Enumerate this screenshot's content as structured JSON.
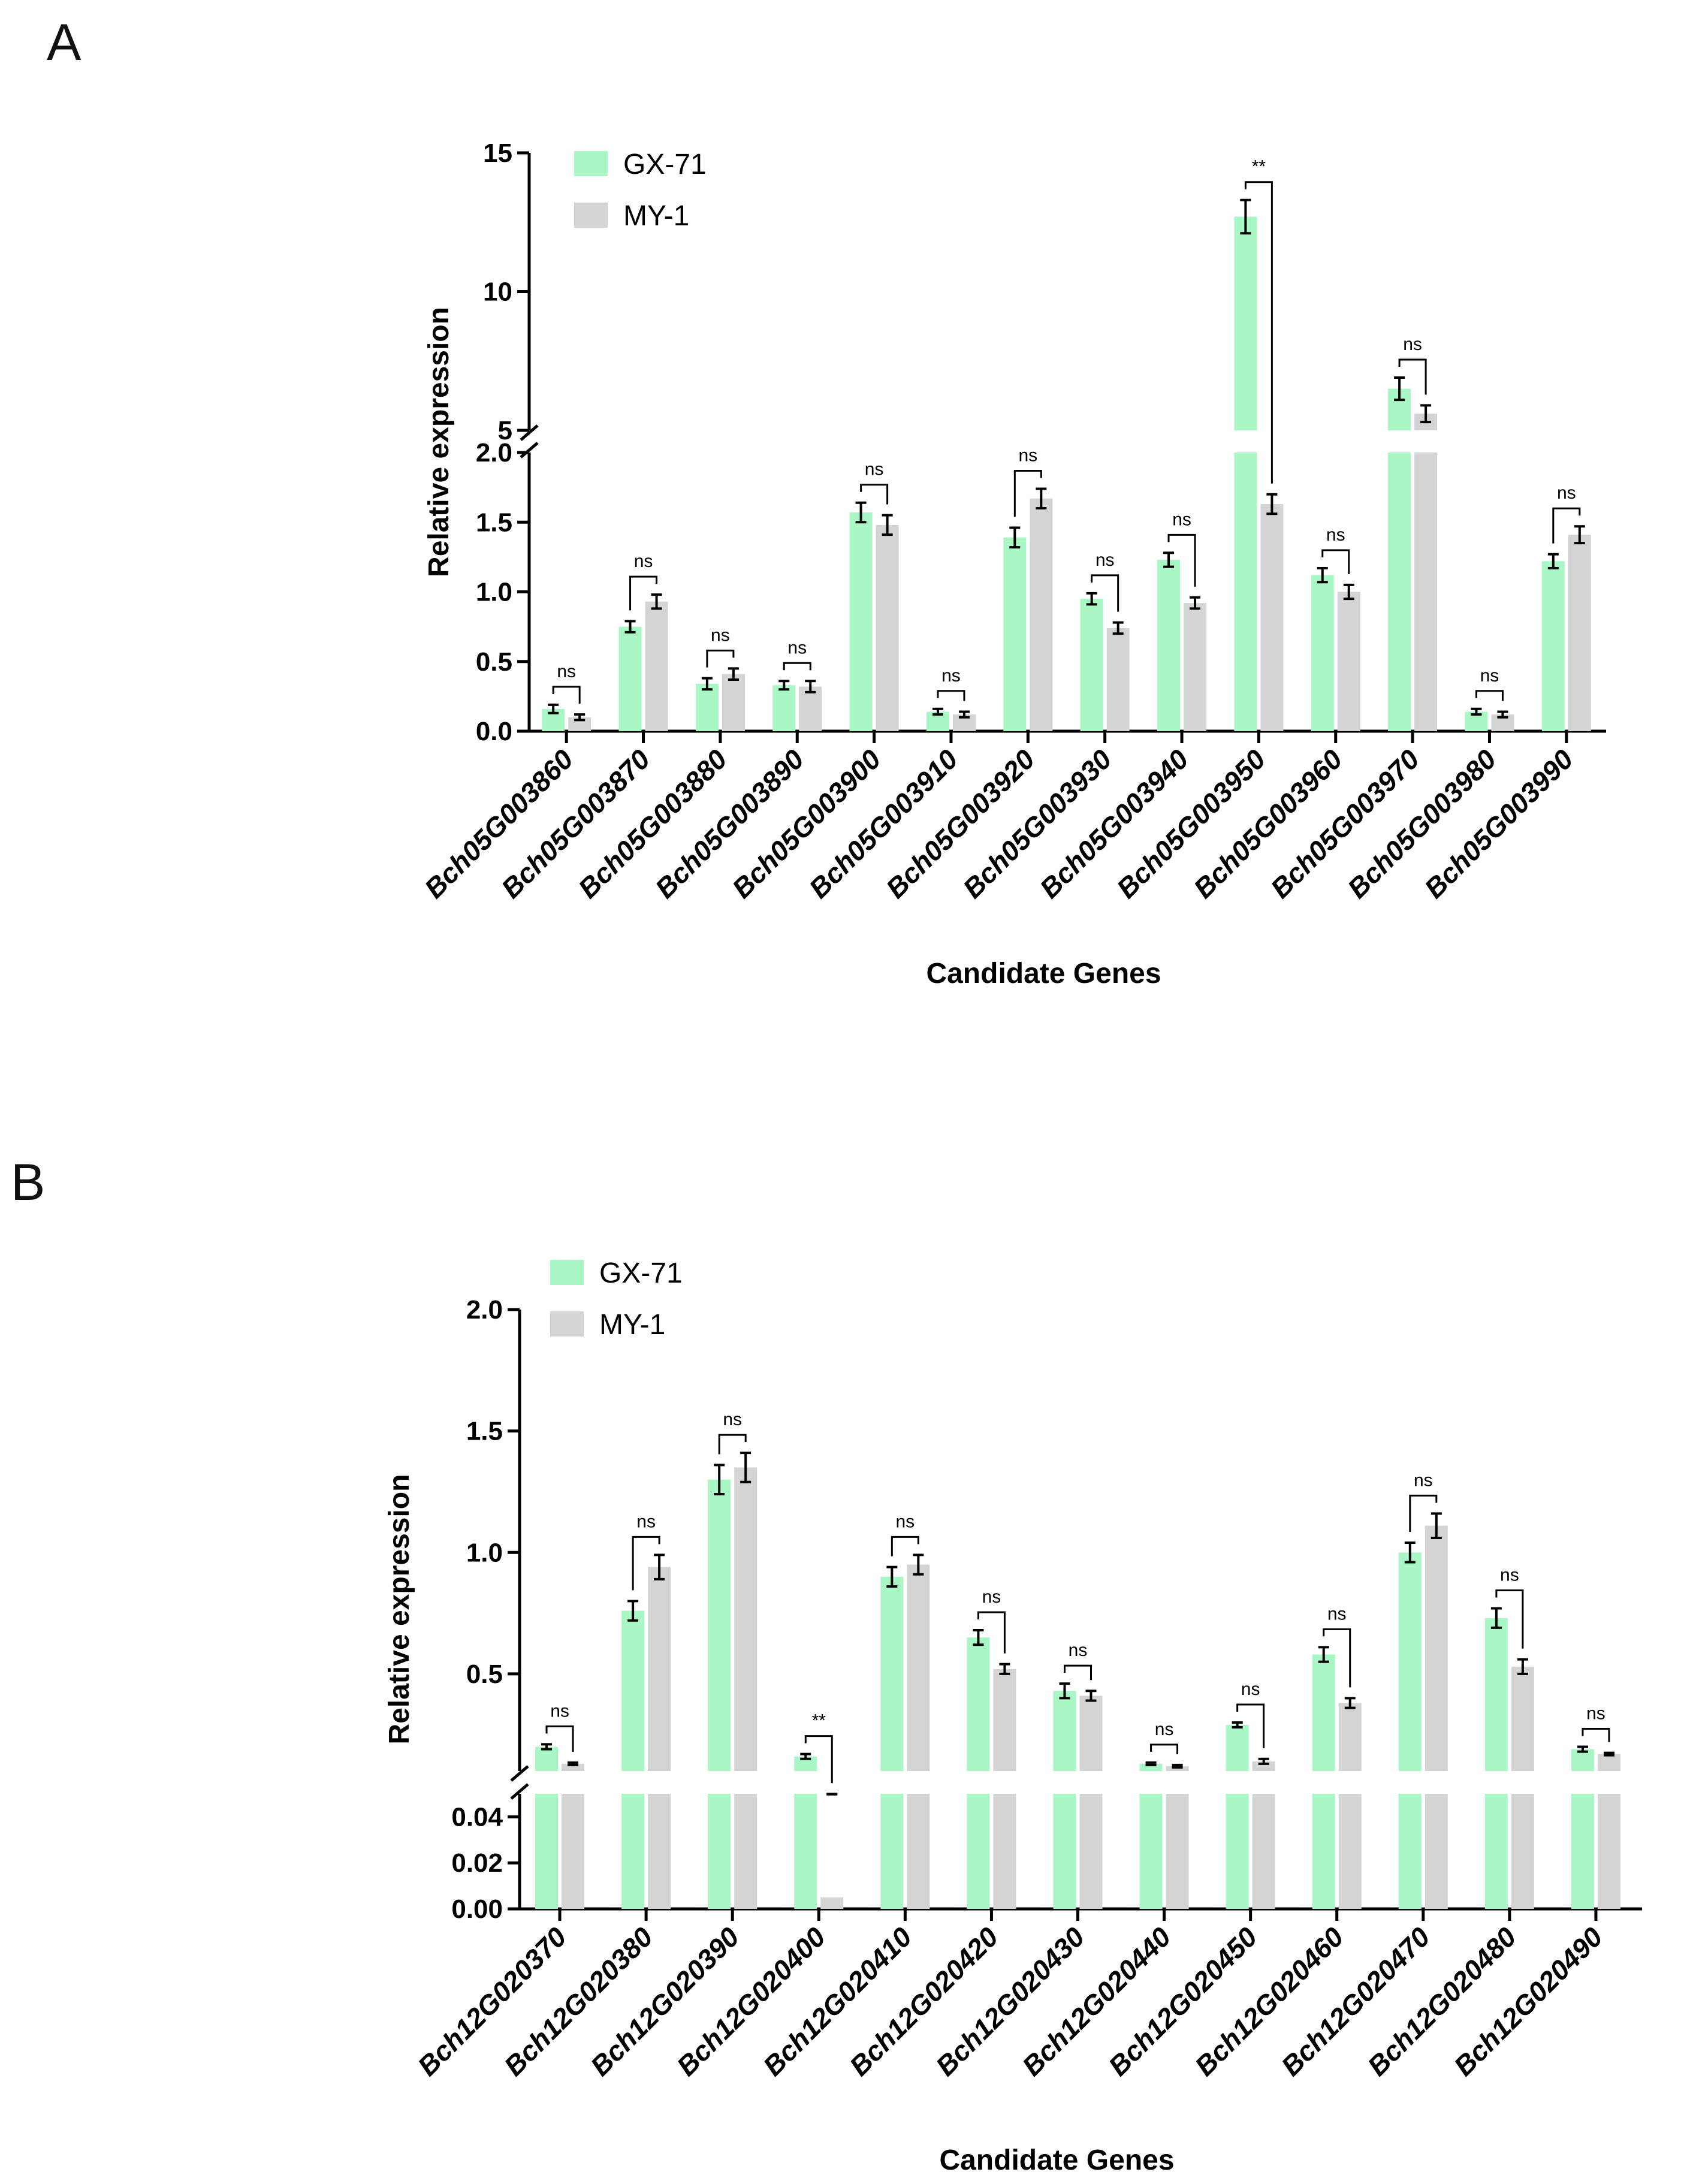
{
  "colors": {
    "gx71": "#aaf7c6",
    "my1": "#d4d4d4",
    "axis": "#000000"
  },
  "chart_data": [
    {
      "panel": "A",
      "type": "bar",
      "xlabel": "Candidate Genes",
      "ylabel": "Relative expression",
      "broken_axis": {
        "lower": [
          0,
          2.0
        ],
        "upper": [
          5,
          15
        ]
      },
      "lower_ticks": [
        "0.0",
        "0.5",
        "1.0",
        "1.5",
        "2.0"
      ],
      "upper_ticks": [
        "5",
        "10",
        "15"
      ],
      "categories": [
        "Bch05G003860",
        "Bch05G003870",
        "Bch05G003880",
        "Bch05G003890",
        "Bch05G003900",
        "Bch05G003910",
        "Bch05G003920",
        "Bch05G003930",
        "Bch05G003940",
        "Bch05G003950",
        "Bch05G003960",
        "Bch05G003970",
        "Bch05G003980",
        "Bch05G003990"
      ],
      "series": [
        {
          "name": "GX-71",
          "values": [
            0.16,
            0.75,
            0.34,
            0.33,
            1.57,
            0.14,
            1.39,
            0.95,
            1.23,
            12.7,
            1.12,
            6.5,
            0.14,
            1.22
          ],
          "errors": [
            0.03,
            0.04,
            0.04,
            0.03,
            0.07,
            0.02,
            0.07,
            0.04,
            0.05,
            0.6,
            0.05,
            0.4,
            0.02,
            0.05
          ]
        },
        {
          "name": "MY-1",
          "values": [
            0.1,
            0.93,
            0.41,
            0.32,
            1.48,
            0.12,
            1.67,
            0.74,
            0.92,
            1.63,
            1.0,
            5.6,
            0.12,
            1.41
          ],
          "errors": [
            0.02,
            0.05,
            0.04,
            0.04,
            0.07,
            0.02,
            0.07,
            0.04,
            0.04,
            0.07,
            0.05,
            0.3,
            0.02,
            0.06
          ]
        }
      ],
      "significance": [
        "ns",
        "ns",
        "ns",
        "ns",
        "ns",
        "ns",
        "ns",
        "ns",
        "ns",
        "**",
        "ns",
        "ns",
        "ns",
        "ns"
      ]
    },
    {
      "panel": "B",
      "type": "bar",
      "xlabel": "Candidate Genes",
      "ylabel": "Relative expression",
      "broken_axis": {
        "lower": [
          0,
          0.05
        ],
        "upper": [
          0.1,
          2.0
        ]
      },
      "lower_ticks": [
        "0.00",
        "0.02",
        "0.04"
      ],
      "upper_ticks": [
        "0.5",
        "1.0",
        "1.5",
        "2.0"
      ],
      "categories": [
        "Bch12G020370",
        "Bch12G020380",
        "Bch12G020390",
        "Bch12G020400",
        "Bch12G020410",
        "Bch12G020420",
        "Bch12G020430",
        "Bch12G020440",
        "Bch12G020450",
        "Bch12G020460",
        "Bch12G020470",
        "Bch12G020480",
        "Bch12G020490"
      ],
      "series": [
        {
          "name": "GX-71",
          "values": [
            0.2,
            0.76,
            1.3,
            0.16,
            0.9,
            0.65,
            0.43,
            0.13,
            0.29,
            0.58,
            1.0,
            0.73,
            0.19
          ],
          "errors": [
            0.01,
            0.04,
            0.06,
            0.01,
            0.04,
            0.03,
            0.03,
            0.005,
            0.01,
            0.03,
            0.04,
            0.04,
            0.01
          ]
        },
        {
          "name": "MY-1",
          "values": [
            0.13,
            0.94,
            1.35,
            0.005,
            0.95,
            0.52,
            0.41,
            0.12,
            0.14,
            0.38,
            1.11,
            0.53,
            0.17
          ],
          "errors": [
            0.005,
            0.05,
            0.06,
            0.0005,
            0.04,
            0.02,
            0.02,
            0.005,
            0.01,
            0.02,
            0.05,
            0.03,
            0.005
          ]
        }
      ],
      "significance": [
        "ns",
        "ns",
        "ns",
        "**",
        "ns",
        "ns",
        "ns",
        "ns",
        "ns",
        "ns",
        "ns",
        "ns",
        "ns"
      ]
    }
  ],
  "panels": {
    "a": "A",
    "b": "B"
  }
}
